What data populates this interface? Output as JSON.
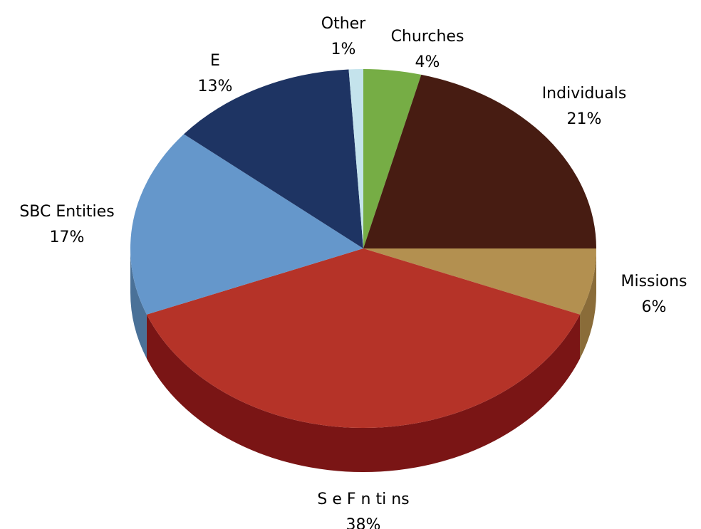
{
  "chart_data": {
    "type": "pie",
    "title": "",
    "slices": [
      {
        "name": "Churches",
        "value": 4,
        "pct_label": "4%",
        "color": "#76ad45",
        "side": "#5a8a32"
      },
      {
        "name": "Individuals",
        "value": 21,
        "pct_label": "21%",
        "color": "#471c12",
        "side": "#2f120b"
      },
      {
        "name": "Missions",
        "value": 6,
        "pct_label": "6%",
        "color": "#b39050",
        "side": "#8a6c39"
      },
      {
        "name": "S e F n ti ns",
        "value": 38,
        "pct_label": "38%",
        "color": "#b53328",
        "side": "#7a1515"
      },
      {
        "name": "SBC Entities",
        "value": 17,
        "pct_label": "17%",
        "color": "#6597cb",
        "side": "#4a7198"
      },
      {
        "name": "E",
        "value": 13,
        "pct_label": "13%",
        "color": "#1e3463",
        "side": "#14244a"
      },
      {
        "name": "Other",
        "value": 1,
        "pct_label": "1%",
        "color": "#c4e3ec",
        "side": "#98b9c3"
      }
    ],
    "legend": "none",
    "style": "3d-pie"
  }
}
